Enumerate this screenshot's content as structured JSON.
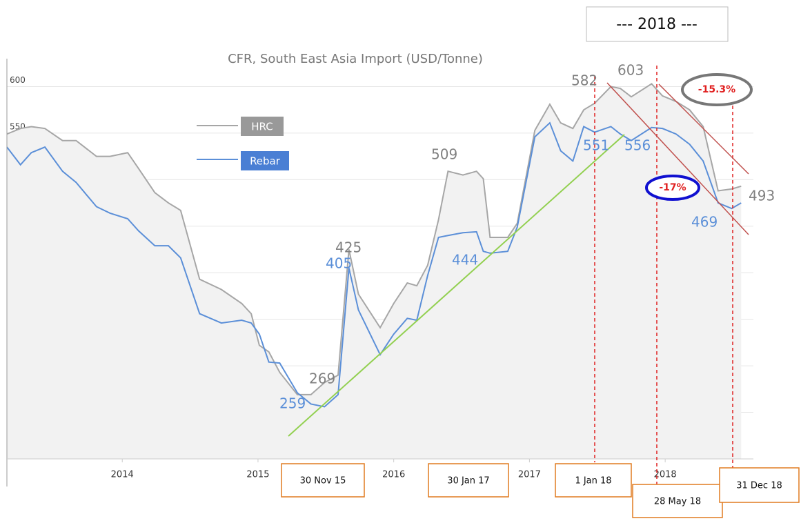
{
  "chart_data": {
    "type": "line",
    "title": "CFR, South East Asia Import (USD/Tonne)",
    "header": "--- 2018 ---",
    "x": [
      2013.15,
      2013.25,
      2013.33,
      2013.43,
      2013.56,
      2013.66,
      2013.81,
      2013.91,
      2014.04,
      2014.12,
      2014.24,
      2014.34,
      2014.43,
      2014.57,
      2014.73,
      2014.88,
      2014.95,
      2015.01,
      2015.08,
      2015.16,
      2015.29,
      2015.39,
      2015.49,
      2015.59,
      2015.67,
      2015.74,
      2015.9,
      2016.0,
      2016.1,
      2016.17,
      2016.25,
      2016.33,
      2016.4,
      2016.51,
      2016.61,
      2016.66,
      2016.71,
      2016.84,
      2016.91,
      2017.04,
      2017.15,
      2017.23,
      2017.32,
      2017.4,
      2017.48,
      2017.6,
      2017.67,
      2017.75,
      2017.9,
      2017.98,
      2018.08,
      2018.18,
      2018.28,
      2018.39,
      2018.49,
      2018.56
    ],
    "series": [
      {
        "name": "HRC",
        "color": "#a6a6a6",
        "values": [
          549,
          555,
          557,
          555,
          542,
          542,
          525,
          525,
          529,
          512,
          486,
          475,
          467,
          393,
          382,
          367,
          356,
          322,
          315,
          293,
          269,
          269,
          282,
          290,
          425,
          377,
          341,
          367,
          389,
          386,
          408,
          457,
          509,
          505,
          509,
          501,
          438,
          438,
          453,
          553,
          581,
          561,
          555,
          575,
          582,
          600,
          598,
          589,
          603,
          590,
          584,
          575,
          557,
          488,
          490,
          493
        ]
      },
      {
        "name": "Rebar",
        "color": "#5b8fd8",
        "values": [
          535,
          516,
          529,
          535,
          509,
          497,
          471,
          464,
          458,
          445,
          429,
          429,
          416,
          356,
          346,
          349,
          346,
          334,
          304,
          303,
          271,
          259,
          256,
          269,
          405,
          360,
          312,
          334,
          351,
          349,
          397,
          438,
          440,
          443,
          444,
          423,
          421,
          423,
          449,
          546,
          561,
          531,
          520,
          557,
          551,
          557,
          549,
          542,
          556,
          555,
          549,
          538,
          520,
          475,
          469,
          475
        ]
      }
    ],
    "annotations": [
      "269",
      "259",
      "425",
      "405",
      "509",
      "444",
      "582",
      "603",
      "551",
      "556",
      "469",
      "493",
      "-15.3%",
      "-17%"
    ],
    "dates": [
      "30 Nov 15",
      "30 Jan 17",
      "1 Jan 18",
      "28 May 18",
      "31 Dec 18"
    ],
    "xlim": [
      2013.15,
      2018.65
    ],
    "xticks": [
      2014,
      2015,
      2016,
      2017,
      2018
    ],
    "ylim": [
      200,
      630
    ],
    "yticks": [
      200,
      250,
      300,
      350,
      400,
      450,
      500,
      550,
      600
    ],
    "grid": true
  }
}
